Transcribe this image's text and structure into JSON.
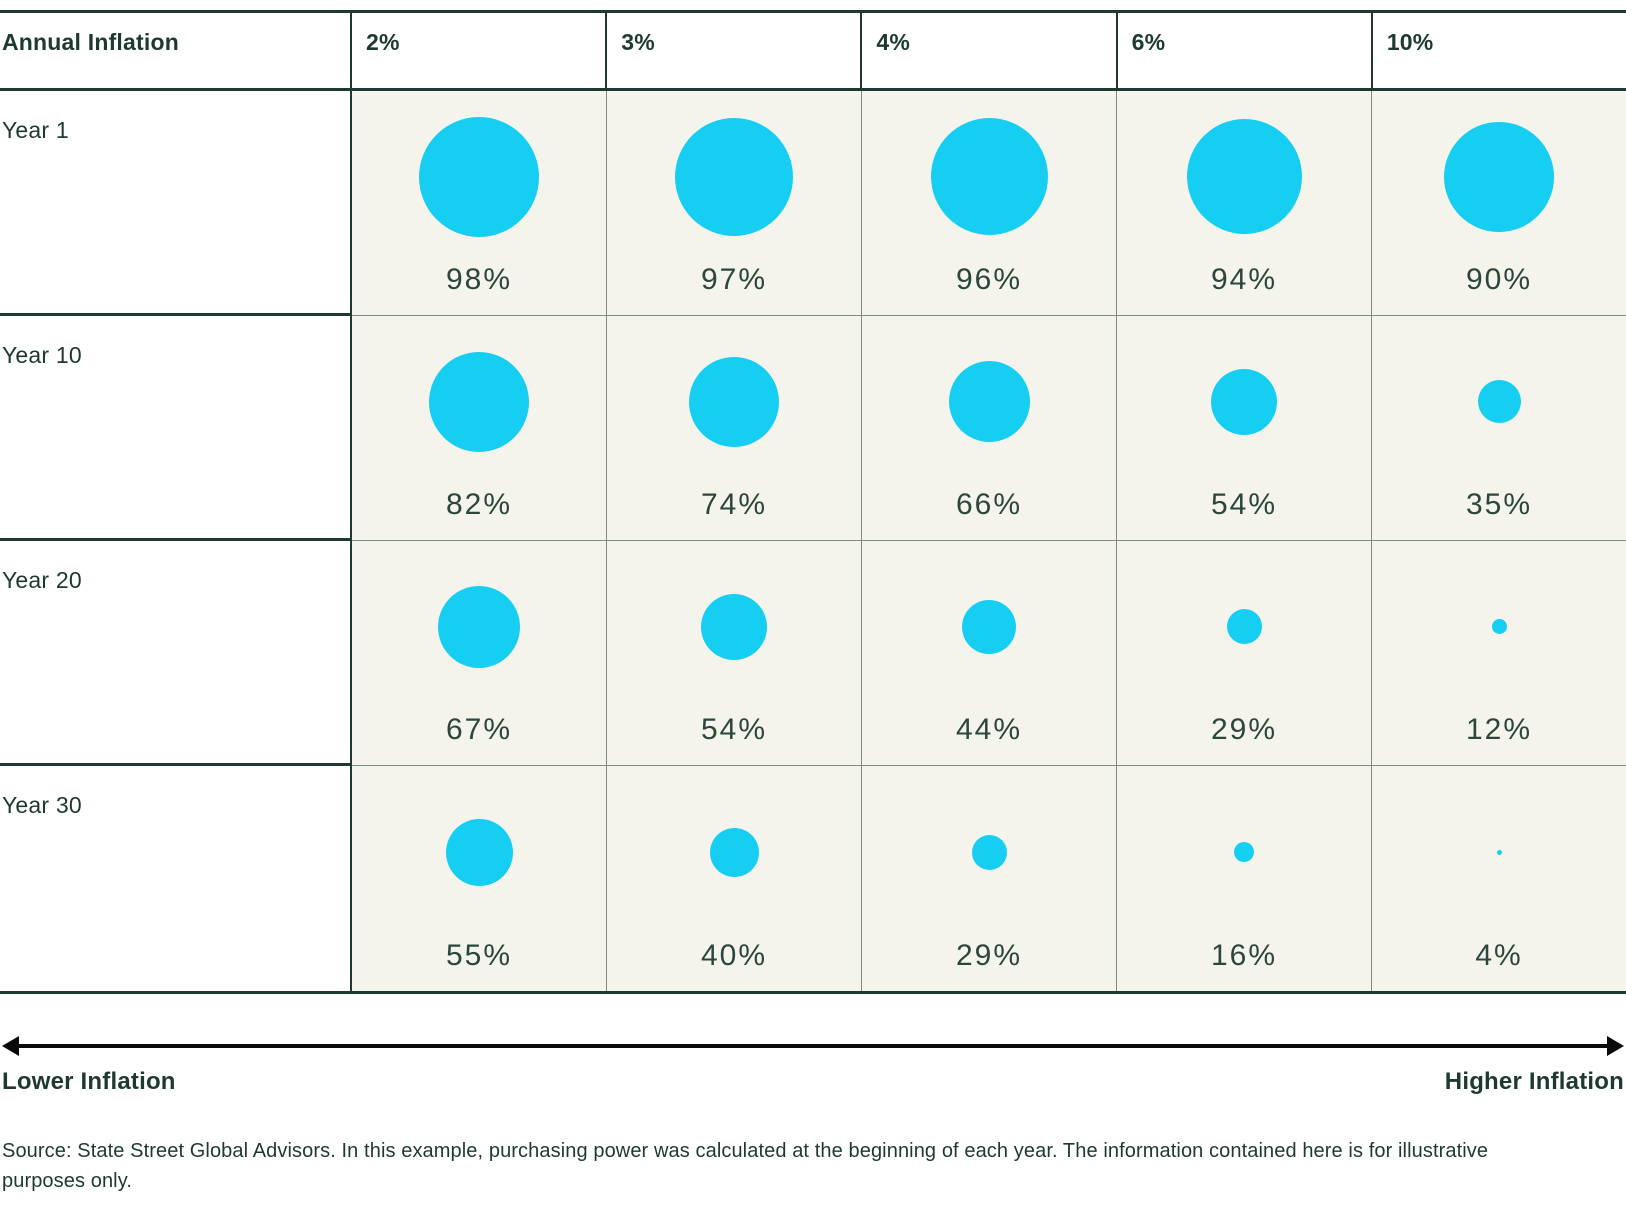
{
  "table": {
    "corner_label": "Annual Inflation",
    "column_headers": [
      "2%",
      "3%",
      "4%",
      "6%",
      "10%"
    ],
    "rows": [
      {
        "label": "Year 1",
        "values": [
          "98%",
          "97%",
          "96%",
          "94%",
          "90%"
        ]
      },
      {
        "label": "Year 10",
        "values": [
          "82%",
          "74%",
          "66%",
          "54%",
          "35%"
        ]
      },
      {
        "label": "Year 20",
        "values": [
          "67%",
          "54%",
          "44%",
          "29%",
          "12%"
        ]
      },
      {
        "label": "Year 30",
        "values": [
          "55%",
          "40%",
          "29%",
          "16%",
          "4%"
        ]
      }
    ]
  },
  "axis": {
    "left_label": "Lower Inflation",
    "right_label": "Higher Inflation"
  },
  "source_text": "Source: State Street Global Advisors. In this example, purchasing power was calculated at the beginning of each year. The information contained here is for illustrative purposes only.",
  "colors": {
    "bubble": "#16cef2",
    "dark_green": "#1e3931",
    "value_text": "#2c463c",
    "cell_background": "#f4f4ed",
    "gridline": "#7e8c85",
    "arrow": "#0a0a0a"
  },
  "chart_data": {
    "type": "table",
    "subtype": "bubble-matrix",
    "title": "Purchasing power remaining under annual inflation",
    "columns": {
      "label": "Annual Inflation",
      "categories": [
        "2%",
        "3%",
        "4%",
        "6%",
        "10%"
      ]
    },
    "row_categories": [
      "Year 1",
      "Year 10",
      "Year 20",
      "Year 30"
    ],
    "series": [
      {
        "name": "Year 1",
        "values": [
          98,
          97,
          96,
          94,
          90
        ]
      },
      {
        "name": "Year 10",
        "values": [
          82,
          74,
          66,
          54,
          35
        ]
      },
      {
        "name": "Year 20",
        "values": [
          67,
          54,
          44,
          29,
          12
        ]
      },
      {
        "name": "Year 30",
        "values": [
          55,
          40,
          29,
          16,
          4
        ]
      }
    ],
    "value_unit": "%",
    "encoding": "bubble diameter proportional to value (approx 1.22 px per percent)",
    "axis_annotation": {
      "left": "Lower Inflation",
      "right": "Higher Inflation",
      "style": "double-headed horizontal arrow"
    },
    "legend": "none",
    "grid": "on"
  }
}
